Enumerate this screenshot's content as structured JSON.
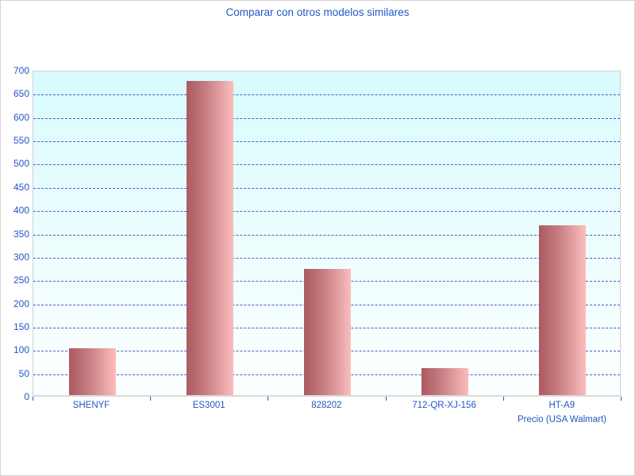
{
  "chart_data": {
    "type": "bar",
    "title": "Comparar con otros modelos similares",
    "xlabel": "Precio (USA Walmart)",
    "ylabel": "",
    "categories": [
      "SHENYF",
      "ES3001",
      "828202",
      "712-QR-XJ-156",
      "HT-A9"
    ],
    "values": [
      100,
      675,
      271,
      58,
      365
    ],
    "ylim": [
      0,
      700
    ],
    "ytick_step": 50,
    "grid": "horizontal-dashed",
    "legend": "none",
    "colors": {
      "text_blue": "#2257c5",
      "gridline_blue": "#3c64c8",
      "bar_gradient_left": "#ab5a60",
      "bar_gradient_right": "#fcbdbd",
      "plot_bg_top": "#d8fbfe",
      "plot_bg_bottom": "#fdffff",
      "axis_border": "#cfcfcf"
    }
  }
}
